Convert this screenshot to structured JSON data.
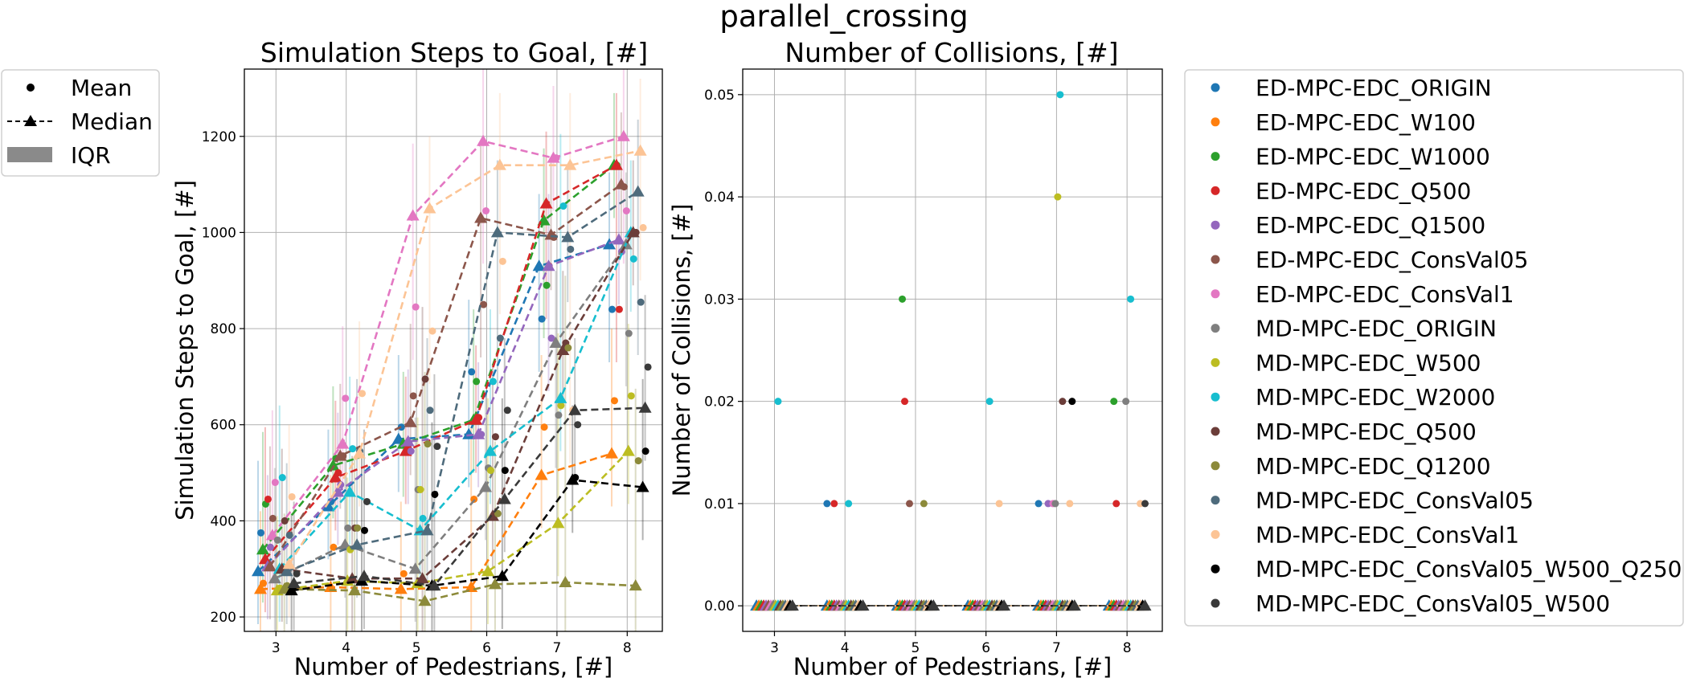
{
  "figure": {
    "title": "parallel_crossing"
  },
  "legend_stats": {
    "mean": "Mean",
    "median": "Median",
    "iqr": "IQR"
  },
  "chart_data": [
    {
      "type": "line",
      "title": "Simulation Steps to Goal, [#]",
      "xlabel": "Number of Pedestrians, [#]",
      "ylabel": "Simulation Steps to Goal, [#]",
      "x": [
        3,
        4,
        5,
        6,
        7,
        8
      ],
      "xlim": [
        2.55,
        8.5
      ],
      "ylim": [
        170,
        1340
      ],
      "yticks": [
        200,
        400,
        600,
        800,
        1000,
        1200
      ],
      "grid": true,
      "legend": "outside-left",
      "series": [
        {
          "name": "ED-MPC-EDC_ORIGIN",
          "color": "#1f77b4",
          "median": [
            295,
            430,
            570,
            580,
            930,
            975
          ],
          "mean": [
            375,
            440,
            595,
            710,
            820,
            840
          ]
        },
        {
          "name": "ED-MPC-EDC_W100",
          "color": "#ff7f0e",
          "median": [
            258,
            262,
            258,
            262,
            495,
            540
          ],
          "mean": [
            270,
            345,
            290,
            445,
            595,
            650
          ]
        },
        {
          "name": "ED-MPC-EDC_W1000",
          "color": "#2ca02c",
          "median": [
            340,
            515,
            560,
            610,
            1025,
            1140
          ],
          "mean": [
            435,
            530,
            560,
            690,
            890,
            1140
          ]
        },
        {
          "name": "ED-MPC-EDC_Q500",
          "color": "#d62728",
          "median": [
            320,
            490,
            545,
            610,
            1060,
            1140
          ],
          "mean": [
            445,
            500,
            550,
            615,
            930,
            840
          ]
        },
        {
          "name": "ED-MPC-EDC_Q1500",
          "color": "#9467bd",
          "median": [
            305,
            460,
            565,
            580,
            930,
            985
          ],
          "mean": [
            345,
            475,
            545,
            580,
            780,
            960
          ]
        },
        {
          "name": "ED-MPC-EDC_ConsVal05",
          "color": "#8c564b",
          "median": [
            305,
            535,
            605,
            1030,
            995,
            1100
          ],
          "mean": [
            405,
            535,
            660,
            850,
            990,
            1095
          ]
        },
        {
          "name": "ED-MPC-EDC_ConsVal1",
          "color": "#e377c2",
          "median": [
            370,
            560,
            1035,
            1190,
            1155,
            1200
          ],
          "mean": [
            480,
            655,
            845,
            1045,
            1155,
            1045
          ]
        },
        {
          "name": "MD-MPC-EDC_ORIGIN",
          "color": "#7f7f7f",
          "median": [
            280,
            350,
            300,
            470,
            770,
            975
          ],
          "mean": [
            360,
            385,
            465,
            510,
            620,
            790
          ]
        },
        {
          "name": "MD-MPC-EDC_W500",
          "color": "#bcbd22",
          "median": [
            255,
            275,
            270,
            295,
            395,
            545
          ],
          "mean": [
            260,
            340,
            465,
            505,
            640,
            660
          ]
        },
        {
          "name": "MD-MPC-EDC_W2000",
          "color": "#17becf",
          "median": [
            300,
            460,
            380,
            545,
            655,
            1000
          ],
          "mean": [
            490,
            550,
            405,
            690,
            1055,
            945
          ]
        },
        {
          "name": "MD-MPC-EDC_Q500",
          "color": "#6b3d39",
          "median": [
            300,
            280,
            280,
            410,
            755,
            1000
          ],
          "mean": [
            400,
            385,
            695,
            575,
            770,
            1000
          ]
        },
        {
          "name": "MD-MPC-EDC_Q1200",
          "color": "#8c8a3a",
          "median": [
            258,
            255,
            233,
            268,
            272,
            265
          ],
          "mean": [
            265,
            385,
            560,
            415,
            760,
            525
          ]
        },
        {
          "name": "MD-MPC-EDC_ConsVal05",
          "color": "#4e6b7c",
          "median": [
            295,
            350,
            380,
            1000,
            990,
            1085
          ],
          "mean": [
            370,
            545,
            630,
            780,
            965,
            855
          ]
        },
        {
          "name": "MD-MPC-EDC_ConsVal1",
          "color": "#fcc495",
          "median": [
            310,
            540,
            1050,
            1140,
            1140,
            1170
          ],
          "mean": [
            450,
            665,
            795,
            940,
            630,
            1010
          ]
        },
        {
          "name": "MD-MPC-EDC_ConsVal05_W500_Q250",
          "color": "#000000",
          "median": [
            255,
            275,
            265,
            285,
            485,
            470
          ],
          "mean": [
            265,
            380,
            455,
            505,
            490,
            545
          ]
        },
        {
          "name": "MD-MPC-EDC_ConsVal05_W500",
          "color": "#3a3a3a",
          "median": [
            270,
            285,
            265,
            445,
            630,
            635
          ],
          "mean": [
            290,
            440,
            555,
            630,
            600,
            720
          ]
        }
      ]
    },
    {
      "type": "scatter",
      "title": "Number of Collisions, [#]",
      "xlabel": "Number of Pedestrians, [#]",
      "ylabel": "Number of Collisions, [#]",
      "x": [
        3,
        4,
        5,
        6,
        7,
        8
      ],
      "xlim": [
        2.55,
        8.5
      ],
      "ylim": [
        -0.0025,
        0.0525
      ],
      "yticks": [
        0.0,
        0.01,
        0.02,
        0.03,
        0.04,
        0.05
      ],
      "ytick_labels": [
        "0.00",
        "0.01",
        "0.02",
        "0.03",
        "0.04",
        "0.05"
      ],
      "grid": true,
      "legend": "outside-right",
      "series": [
        {
          "name": "ED-MPC-EDC_ORIGIN",
          "color": "#1f77b4",
          "values": [
            0.0,
            0.01,
            0.0,
            0.0,
            0.01,
            0.0
          ]
        },
        {
          "name": "ED-MPC-EDC_W100",
          "color": "#ff7f0e",
          "values": [
            0.0,
            0.0,
            0.0,
            0.0,
            0.0,
            0.0
          ]
        },
        {
          "name": "ED-MPC-EDC_W1000",
          "color": "#2ca02c",
          "values": [
            0.0,
            0.0,
            0.03,
            0.0,
            0.0,
            0.02
          ]
        },
        {
          "name": "ED-MPC-EDC_Q500",
          "color": "#d62728",
          "values": [
            0.0,
            0.01,
            0.02,
            0.0,
            0.0,
            0.01
          ]
        },
        {
          "name": "ED-MPC-EDC_Q1500",
          "color": "#9467bd",
          "values": [
            0.0,
            0.0,
            0.0,
            0.0,
            0.01,
            0.0
          ]
        },
        {
          "name": "ED-MPC-EDC_ConsVal05",
          "color": "#8c564b",
          "values": [
            0.0,
            0.0,
            0.01,
            0.0,
            0.0,
            0.0
          ]
        },
        {
          "name": "ED-MPC-EDC_ConsVal1",
          "color": "#e377c2",
          "values": [
            0.0,
            0.0,
            0.0,
            0.0,
            0.01,
            0.0
          ]
        },
        {
          "name": "MD-MPC-EDC_ORIGIN",
          "color": "#7f7f7f",
          "values": [
            0.0,
            0.0,
            0.0,
            0.0,
            0.01,
            0.02
          ]
        },
        {
          "name": "MD-MPC-EDC_W500",
          "color": "#bcbd22",
          "values": [
            0.0,
            0.0,
            0.0,
            0.0,
            0.04,
            0.0
          ]
        },
        {
          "name": "MD-MPC-EDC_W2000",
          "color": "#17becf",
          "values": [
            0.02,
            0.01,
            0.0,
            0.02,
            0.05,
            0.03
          ]
        },
        {
          "name": "MD-MPC-EDC_Q500",
          "color": "#6b3d39",
          "values": [
            0.0,
            0.0,
            0.0,
            0.0,
            0.02,
            0.0
          ]
        },
        {
          "name": "MD-MPC-EDC_Q1200",
          "color": "#8c8a3a",
          "values": [
            0.0,
            0.0,
            0.01,
            0.0,
            0.0,
            0.0
          ]
        },
        {
          "name": "MD-MPC-EDC_ConsVal05",
          "color": "#4e6b7c",
          "values": [
            0.0,
            0.0,
            0.0,
            0.0,
            0.0,
            0.0
          ]
        },
        {
          "name": "MD-MPC-EDC_ConsVal1",
          "color": "#fcc495",
          "values": [
            0.0,
            0.0,
            0.0,
            0.01,
            0.01,
            0.01
          ]
        },
        {
          "name": "MD-MPC-EDC_ConsVal05_W500_Q250",
          "color": "#000000",
          "values": [
            0.0,
            0.0,
            0.0,
            0.0,
            0.02,
            0.0
          ]
        },
        {
          "name": "MD-MPC-EDC_ConsVal05_W500",
          "color": "#3a3a3a",
          "values": [
            0.0,
            0.0,
            0.0,
            0.0,
            0.0,
            0.01
          ]
        }
      ]
    }
  ]
}
